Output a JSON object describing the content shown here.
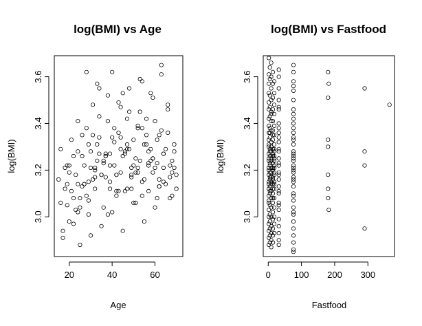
{
  "chart_data": [
    {
      "type": "scatter",
      "title": "log(BMI) vs Age",
      "xlabel": "Age",
      "ylabel": "log(BMI)",
      "xlim": [
        13,
        73
      ],
      "ylim": [
        2.83,
        3.69
      ],
      "xticks": [
        20,
        40,
        60
      ],
      "yticks": [
        3.0,
        3.2,
        3.4,
        3.6
      ],
      "x": [
        15,
        16,
        17,
        18,
        19,
        20,
        21,
        22,
        23,
        24,
        25,
        26,
        27,
        28,
        29,
        30,
        31,
        32,
        33,
        34,
        35,
        36,
        37,
        38,
        39,
        40,
        41,
        42,
        43,
        44,
        45,
        46,
        47,
        48,
        49,
        50,
        51,
        52,
        53,
        54,
        55,
        56,
        57,
        58,
        59,
        60,
        61,
        62,
        63,
        64,
        65,
        66,
        67,
        68,
        69,
        70,
        16,
        18,
        20,
        22,
        24,
        26,
        28,
        30,
        32,
        34,
        36,
        38,
        40,
        42,
        44,
        46,
        48,
        50,
        52,
        54,
        56,
        58,
        60,
        62,
        64,
        66,
        68,
        70,
        17,
        21,
        25,
        29,
        33,
        37,
        41,
        45,
        49,
        53,
        57,
        61,
        65,
        69,
        19,
        23,
        27,
        31,
        35,
        39,
        43,
        47,
        51,
        55,
        59,
        63,
        67,
        25,
        30,
        35,
        40,
        45,
        50,
        55,
        60,
        28,
        33,
        38,
        43,
        48,
        53,
        58,
        63,
        66,
        20,
        24,
        29,
        34,
        39,
        44,
        49,
        54,
        59,
        64,
        31,
        36,
        41,
        46,
        51,
        56,
        61,
        26,
        32,
        37,
        42,
        47,
        52,
        57,
        62,
        68,
        22,
        27,
        32,
        37,
        42,
        47,
        52,
        57,
        62,
        67,
        19,
        24,
        29,
        34,
        39,
        44,
        49,
        54,
        59,
        64,
        69
      ],
      "y": [
        3.16,
        3.29,
        2.94,
        3.12,
        3.05,
        3.22,
        3.33,
        2.97,
        3.18,
        3.41,
        3.08,
        3.26,
        3.14,
        3.38,
        3.01,
        3.21,
        3.48,
        3.12,
        3.31,
        3.55,
        3.18,
        3.04,
        3.27,
        3.41,
        3.15,
        3.62,
        3.22,
        3.09,
        3.36,
        3.19,
        3.53,
        3.28,
        3.12,
        3.45,
        3.21,
        3.33,
        3.06,
        3.39,
        3.24,
        3.58,
        3.16,
        3.42,
        3.11,
        3.29,
        3.51,
        3.21,
        3.08,
        3.35,
        3.65,
        3.27,
        3.14,
        3.46,
        3.22,
        3.09,
        3.31,
        3.18,
        3.06,
        3.21,
        2.98,
        3.26,
        3.14,
        3.35,
        3.09,
        3.28,
        3.17,
        3.43,
        3.23,
        3.01,
        3.34,
        3.18,
        3.47,
        3.11,
        3.29,
        3.22,
        3.38,
        3.15,
        3.31,
        3.24,
        3.41,
        3.13,
        3.27,
        3.36,
        3.19,
        3.12,
        2.91,
        3.11,
        3.04,
        3.31,
        3.24,
        3.17,
        3.38,
        3.26,
        3.12,
        3.45,
        3.22,
        3.33,
        3.29,
        3.21,
        3.14,
        3.03,
        3.22,
        3.35,
        3.18,
        3.27,
        3.11,
        3.42,
        3.25,
        3.31,
        3.19,
        3.37,
        3.08,
        2.88,
        2.92,
        2.96,
        3.02,
        2.94,
        3.06,
        2.98,
        3.04,
        3.62,
        3.57,
        3.52,
        3.49,
        3.55,
        3.59,
        3.53,
        3.61,
        3.48,
        3.19,
        3.28,
        3.15,
        3.34,
        3.22,
        3.29,
        3.17,
        3.38,
        3.25,
        3.21,
        3.16,
        3.24,
        3.32,
        3.27,
        3.19,
        3.35,
        3.23,
        3.13,
        3.2,
        3.26,
        3.18,
        3.31,
        3.21,
        3.28,
        3.16,
        3.24,
        3.08,
        3.14,
        3.21,
        3.26,
        3.11,
        3.29,
        3.19,
        3.23,
        3.13,
        3.17,
        3.22,
        3.02,
        3.07,
        3.27,
        3.12,
        3.34,
        3.18,
        3.09,
        3.25,
        3.15,
        3.28
      ]
    },
    {
      "type": "scatter",
      "title": "log(BMI) vs Fastfood",
      "xlabel": "Fastfood",
      "ylabel": "log(BMI)",
      "xlim": [
        -15,
        380
      ],
      "ylim": [
        2.83,
        3.69
      ],
      "xticks": [
        0,
        100,
        200,
        300
      ],
      "yticks": [
        3.0,
        3.2,
        3.4,
        3.6
      ],
      "x": [
        2,
        2,
        2,
        2,
        2,
        2,
        2,
        2,
        2,
        2,
        2,
        2,
        2,
        2,
        2,
        2,
        2,
        2,
        2,
        2,
        2,
        2,
        2,
        2,
        2,
        2,
        2,
        2,
        2,
        2,
        5,
        5,
        5,
        5,
        5,
        5,
        5,
        5,
        5,
        5,
        5,
        5,
        5,
        5,
        5,
        5,
        5,
        5,
        5,
        5,
        5,
        5,
        5,
        5,
        5,
        9,
        9,
        9,
        9,
        9,
        9,
        9,
        9,
        9,
        9,
        9,
        9,
        9,
        9,
        9,
        9,
        9,
        9,
        9,
        9,
        9,
        9,
        9,
        9,
        9,
        9,
        14,
        14,
        14,
        14,
        14,
        14,
        14,
        14,
        14,
        14,
        14,
        14,
        14,
        14,
        14,
        14,
        14,
        14,
        14,
        14,
        14,
        14,
        14,
        14,
        14,
        14,
        18,
        18,
        18,
        18,
        18,
        18,
        18,
        18,
        18,
        18,
        18,
        18,
        18,
        18,
        18,
        18,
        18,
        18,
        18,
        18,
        18,
        18,
        18,
        18,
        32,
        32,
        32,
        32,
        32,
        32,
        32,
        32,
        32,
        32,
        32,
        32,
        32,
        32,
        32,
        32,
        32,
        32,
        32,
        32,
        32,
        32,
        32,
        32,
        32,
        32,
        32,
        32,
        32,
        32,
        76,
        76,
        76,
        76,
        76,
        76,
        76,
        76,
        76,
        76,
        76,
        76,
        76,
        76,
        76,
        76,
        76,
        76,
        76,
        76,
        76,
        76,
        76,
        76,
        76,
        76,
        76,
        76,
        76,
        76,
        76,
        76,
        76,
        76,
        76,
        76,
        76,
        76,
        76,
        76,
        180,
        180,
        180,
        180,
        180,
        180,
        180,
        182,
        182,
        290,
        290,
        290,
        290,
        365
      ],
      "y": [
        3.68,
        3.61,
        3.57,
        3.53,
        3.49,
        3.46,
        3.42,
        3.39,
        3.36,
        3.33,
        3.3,
        3.27,
        3.24,
        3.21,
        3.18,
        3.15,
        3.12,
        3.09,
        3.06,
        3.03,
        3.0,
        2.97,
        2.94,
        2.91,
        2.88,
        3.2,
        3.25,
        3.31,
        3.14,
        3.07,
        3.64,
        3.59,
        3.52,
        3.47,
        3.43,
        3.38,
        3.34,
        3.29,
        3.26,
        3.22,
        3.19,
        3.16,
        3.13,
        3.1,
        3.05,
        3.01,
        2.98,
        2.95,
        2.92,
        2.89,
        3.23,
        3.28,
        3.36,
        3.11,
        3.17,
        3.66,
        3.6,
        3.55,
        3.5,
        3.45,
        3.41,
        3.37,
        3.32,
        3.28,
        3.25,
        3.21,
        3.17,
        3.14,
        3.11,
        3.08,
        3.04,
        3.0,
        2.96,
        2.93,
        2.9,
        2.87,
        3.19,
        3.3,
        3.44,
        3.24,
        3.15,
        3.62,
        3.57,
        3.51,
        3.46,
        3.41,
        3.37,
        3.33,
        3.29,
        3.26,
        3.23,
        3.2,
        3.17,
        3.14,
        3.1,
        3.06,
        3.02,
        2.99,
        2.95,
        2.92,
        2.89,
        3.35,
        3.27,
        3.21,
        3.16,
        3.12,
        3.08,
        3.58,
        3.53,
        3.48,
        3.44,
        3.39,
        3.35,
        3.31,
        3.28,
        3.24,
        3.21,
        3.18,
        3.15,
        3.12,
        3.08,
        3.04,
        3.0,
        2.97,
        2.93,
        3.29,
        3.26,
        3.22,
        3.19,
        3.25,
        3.14,
        3.63,
        3.6,
        3.55,
        3.5,
        3.46,
        3.4,
        3.36,
        3.32,
        3.28,
        3.25,
        3.22,
        3.19,
        3.16,
        3.13,
        3.1,
        3.06,
        3.03,
        2.99,
        2.96,
        2.93,
        2.9,
        2.88,
        3.47,
        3.34,
        3.23,
        3.18,
        3.11,
        3.05,
        3.38,
        3.29,
        3.65,
        3.62,
        3.58,
        3.54,
        3.5,
        3.46,
        3.42,
        3.38,
        3.34,
        3.31,
        3.28,
        3.25,
        3.22,
        3.19,
        3.16,
        3.13,
        3.1,
        3.07,
        3.04,
        3.01,
        2.98,
        2.95,
        2.92,
        2.89,
        2.86,
        2.85,
        3.44,
        3.36,
        3.27,
        3.2,
        3.15,
        3.09,
        3.02,
        3.56,
        3.4,
        3.33,
        3.24,
        3.21,
        3.17,
        3.26,
        3.3,
        3.12,
        3.62,
        3.51,
        3.33,
        3.18,
        3.08,
        3.03,
        3.57,
        3.55,
        3.28,
        3.22,
        2.95,
        3.48
      ]
    }
  ]
}
